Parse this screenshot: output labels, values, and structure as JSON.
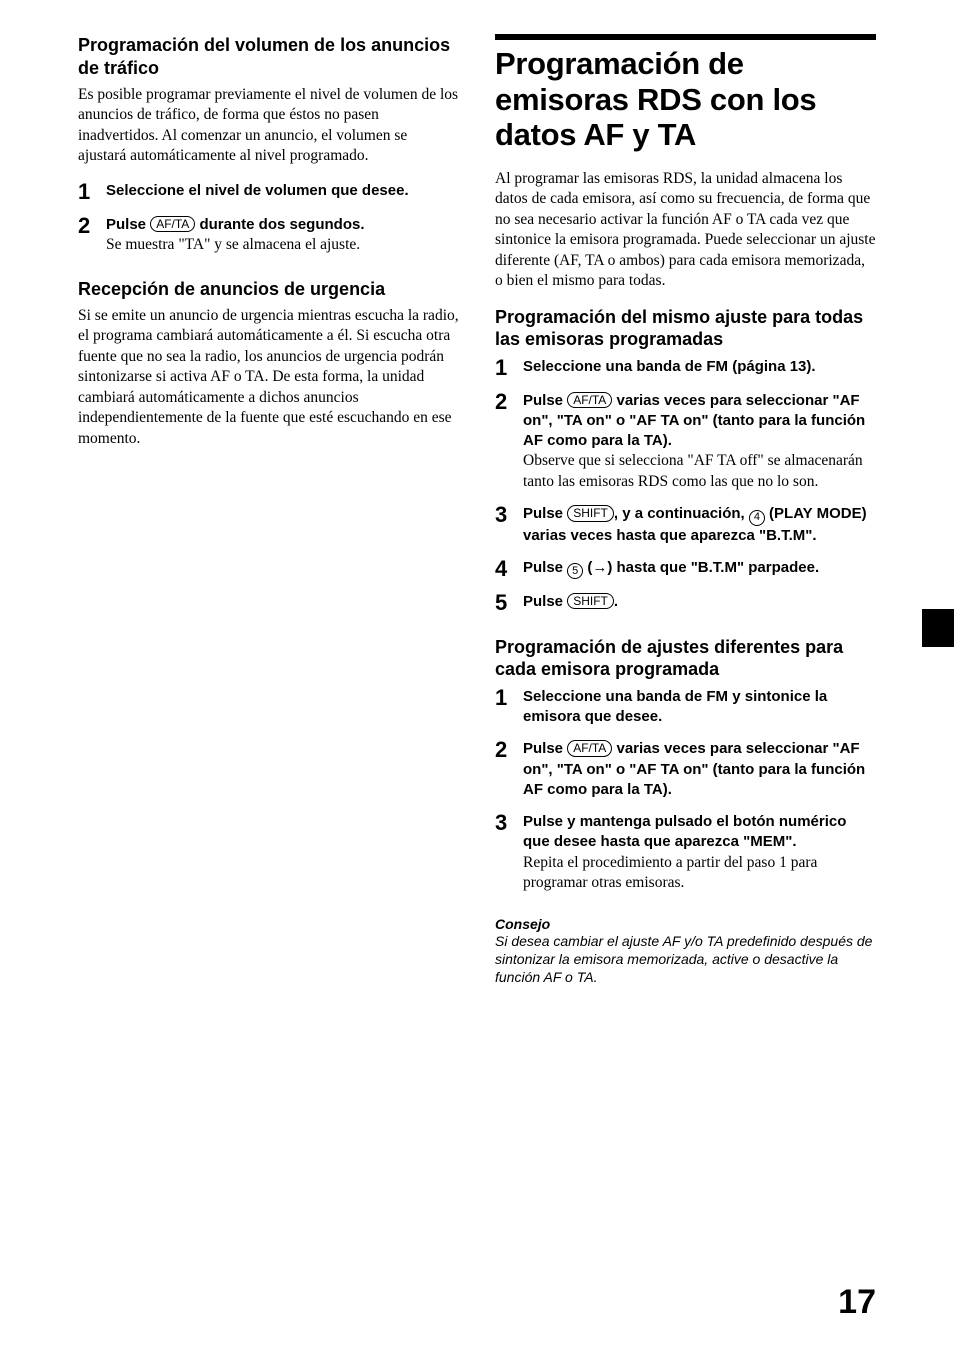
{
  "pageNumber": "17",
  "left": {
    "h1": "Programación del volumen de los anuncios de tráfico",
    "p1": "Es posible programar previamente el nivel de volumen de los anuncios de tráfico, de forma que éstos no pasen inadvertidos. Al comenzar un anuncio, el volumen se ajustará automáticamente al nivel programado.",
    "s1": {
      "n": "1",
      "bold": "Seleccione el nivel de volumen que desee."
    },
    "s2": {
      "n": "2",
      "b1": "Pulse ",
      "btn": "AF/TA",
      "b2": " durante dos segundos.",
      "plain": "Se muestra \"TA\" y se almacena el ajuste."
    },
    "h2": "Recepción de anuncios de urgencia",
    "p2": "Si se emite un anuncio de urgencia mientras escucha la radio, el programa cambiará automáticamente a él. Si escucha otra fuente que no sea la radio, los anuncios de urgencia podrán sintonizarse si activa AF o TA. De esta forma, la unidad cambiará automáticamente a dichos anuncios independientemente de la fuente que esté escuchando en ese momento."
  },
  "right": {
    "title": "Programación de emisoras RDS con los datos AF y TA",
    "intro": "Al programar las emisoras RDS, la unidad almacena los datos de cada emisora, así como su frecuencia, de forma que no sea necesario activar la función AF o TA cada vez que sintonice la emisora programada. Puede seleccionar un ajuste diferente (AF, TA o ambos) para cada emisora memorizada, o bien el mismo para todas.",
    "hA": "Programación del mismo ajuste para todas las emisoras programadas",
    "a1": {
      "n": "1",
      "bold": "Seleccione una banda de FM (página 13)."
    },
    "a2": {
      "n": "2",
      "b1": "Pulse ",
      "btn": "AF/TA",
      "b2": " varias veces para seleccionar \"AF on\", \"TA on\" o \"AF TA on\" (tanto para la función AF como para la TA).",
      "plain": "Observe que si selecciona \"AF TA off\" se almacenarán tanto las emisoras RDS como las que no lo son."
    },
    "a3": {
      "n": "3",
      "b1": "Pulse ",
      "btn1": "SHIFT",
      "b2": ", y a continuación, ",
      "circ": "4",
      "b3": " (PLAY MODE) varias veces hasta que aparezca \"B.T.M\"."
    },
    "a4": {
      "n": "4",
      "b1": "Pulse ",
      "circ": "5",
      "b2": " (→) hasta que \"B.T.M\" parpadee."
    },
    "a5": {
      "n": "5",
      "b1": "Pulse ",
      "btn": "SHIFT",
      "b2": "."
    },
    "hB": "Programación de ajustes diferentes para cada emisora programada",
    "b1s": {
      "n": "1",
      "bold": "Seleccione una banda de FM y sintonice la emisora que desee."
    },
    "b2s": {
      "n": "2",
      "b1": "Pulse ",
      "btn": "AF/TA",
      "b2": " varias veces para seleccionar \"AF on\", \"TA on\" o \"AF TA on\" (tanto para la función AF como para la TA)."
    },
    "b3s": {
      "n": "3",
      "bold": "Pulse y mantenga pulsado el botón numérico que desee hasta que aparezca \"MEM\".",
      "plain": "Repita el procedimiento a partir del paso 1 para programar otras emisoras."
    },
    "tipHead": "Consejo",
    "tipBody": "Si desea cambiar el ajuste AF y/o TA predefinido después de sintonizar la emisora memorizada, active o desactive la función AF o TA."
  }
}
